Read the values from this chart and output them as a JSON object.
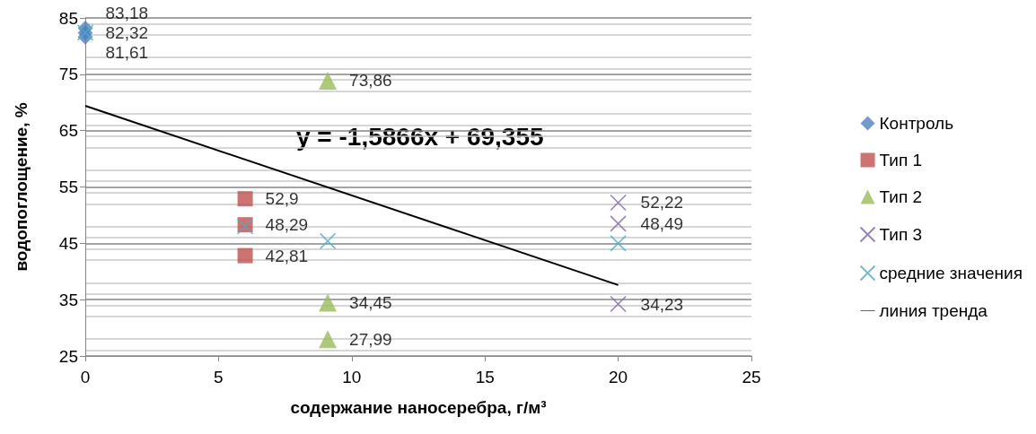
{
  "chart_data": {
    "type": "scatter",
    "xlabel": "содержание наносеребра, г/м³",
    "ylabel": "водопоглощение, %",
    "xlim": [
      0,
      25
    ],
    "xticks": [
      0,
      5,
      10,
      15,
      20,
      25
    ],
    "ylim": [
      25,
      85
    ],
    "yticks": [
      25,
      35,
      45,
      55,
      65,
      75,
      85
    ],
    "grid": "y",
    "legend": "right",
    "annotations": [
      "y = -1,5866x + 69,355"
    ],
    "series": [
      {
        "name": "Контроль",
        "color": "#4f81bd",
        "marker": "diamond",
        "x": [
          0,
          0,
          0
        ],
        "values": [
          83.18,
          82.32,
          81.61
        ],
        "value_labels": [
          "83,18",
          "82,32",
          "81,61"
        ]
      },
      {
        "name": "Тип 1",
        "color": "#c0504d",
        "marker": "square",
        "x": [
          6,
          6,
          6
        ],
        "values": [
          52.9,
          48.29,
          42.81
        ],
        "value_labels": [
          "52,9",
          "48,29",
          "42,81"
        ]
      },
      {
        "name": "Тип 2",
        "color": "#9bbb59",
        "marker": "triangle",
        "x": [
          9.1,
          9.1,
          9.1
        ],
        "values": [
          73.86,
          34.45,
          27.99
        ],
        "value_labels": [
          "73,86",
          "34,45",
          "27,99"
        ]
      },
      {
        "name": "Тип 3",
        "color": "#8064a2",
        "marker": "cross",
        "x": [
          20,
          20,
          20
        ],
        "values": [
          52.22,
          48.49,
          34.23
        ],
        "value_labels": [
          "52,22",
          "48,49",
          "34,23"
        ]
      },
      {
        "name": "средние значения",
        "color": "#4bacc6",
        "marker": "cross",
        "x": [
          0,
          6,
          9.1,
          20
        ],
        "values": [
          82.4,
          48.0,
          45.4,
          45.0
        ]
      },
      {
        "name": "линия тренда",
        "type": "line",
        "color": "#000000",
        "marker": "none",
        "x": [
          0,
          20
        ],
        "values": [
          69.4,
          37.6
        ]
      }
    ]
  }
}
